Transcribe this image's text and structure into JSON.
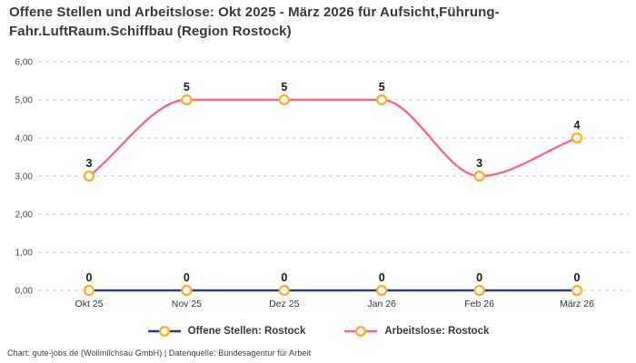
{
  "title": "Offene Stellen und Arbeitslose: Okt 2025 - März 2026 für Aufsicht,Führung-Fahr.LuftRaum.Schiffbau (Region Rostock)",
  "footer": "Chart: gute-jobs.de (Wollmilchsau GmbH) | Datenquelle: Bundesagentur für Arbeit",
  "colors": {
    "offene_stellen": "#28388F",
    "arbeitslose": "#F5688A",
    "marker_ring": "#FBB033",
    "marker_fill": "#FFFFFF",
    "grid": "#CBCBCB"
  },
  "legend": [
    {
      "label": "Offene Stellen: Rostock",
      "series": "offene_stellen"
    },
    {
      "label": "Arbeitslose: Rostock",
      "series": "arbeitslose"
    }
  ],
  "chart_data": {
    "type": "line",
    "categories": [
      "Okt 25",
      "Nov 25",
      "Dez 25",
      "Jan 26",
      "Feb 26",
      "März 26"
    ],
    "series": [
      {
        "name": "Offene Stellen: Rostock",
        "color_key": "offene_stellen",
        "values": [
          0,
          0,
          0,
          0,
          0,
          0
        ]
      },
      {
        "name": "Arbeitslose: Rostock",
        "color_key": "arbeitslose",
        "values": [
          3,
          5,
          5,
          5,
          3,
          4
        ]
      }
    ],
    "y_ticks": [
      "0,00",
      "1,00",
      "2,00",
      "3,00",
      "4,00",
      "5,00",
      "6,00"
    ],
    "ylim": [
      0,
      6
    ],
    "grid": "horizontal-dashed",
    "line_style": "smooth-monotone",
    "point_labels": true,
    "legend_position": "bottom"
  }
}
